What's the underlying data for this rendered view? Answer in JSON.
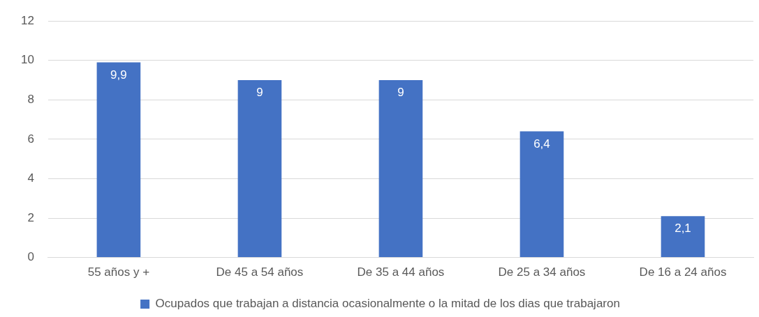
{
  "chart_data": {
    "type": "bar",
    "categories": [
      "55 años y +",
      "De 45 a 54 años",
      "De 35 a 44 años",
      "De 25 a 34 años",
      "De 16 a 24 años"
    ],
    "series": [
      {
        "name": "Ocupados que trabajan a distancia ocasionalmente o la mitad de los dias que trabajaron",
        "color": "#4472c4",
        "values": [
          9.9,
          9,
          9,
          6.4,
          2.1
        ],
        "value_labels": [
          "9,9",
          "9",
          "9",
          "6,4",
          "2,1"
        ]
      }
    ],
    "ylim": [
      0,
      12
    ],
    "yticks": [
      0,
      2,
      4,
      6,
      8,
      10,
      12
    ],
    "grid": "y",
    "legend": "bottom"
  }
}
